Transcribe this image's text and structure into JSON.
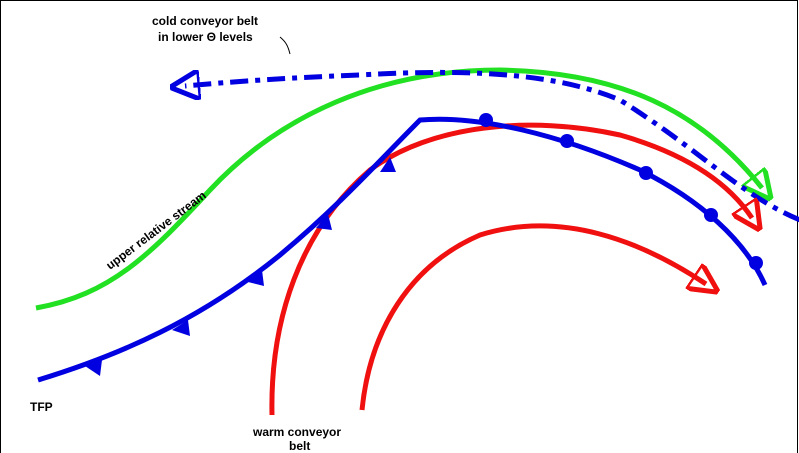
{
  "labels": {
    "cold_conveyor": [
      "cold conveyor belt",
      "in lower Θ levels"
    ],
    "upper_stream": "upper relative stream",
    "tfp": "TFP",
    "warm_conveyor": [
      "warm conveyor",
      "belt"
    ]
  }
}
